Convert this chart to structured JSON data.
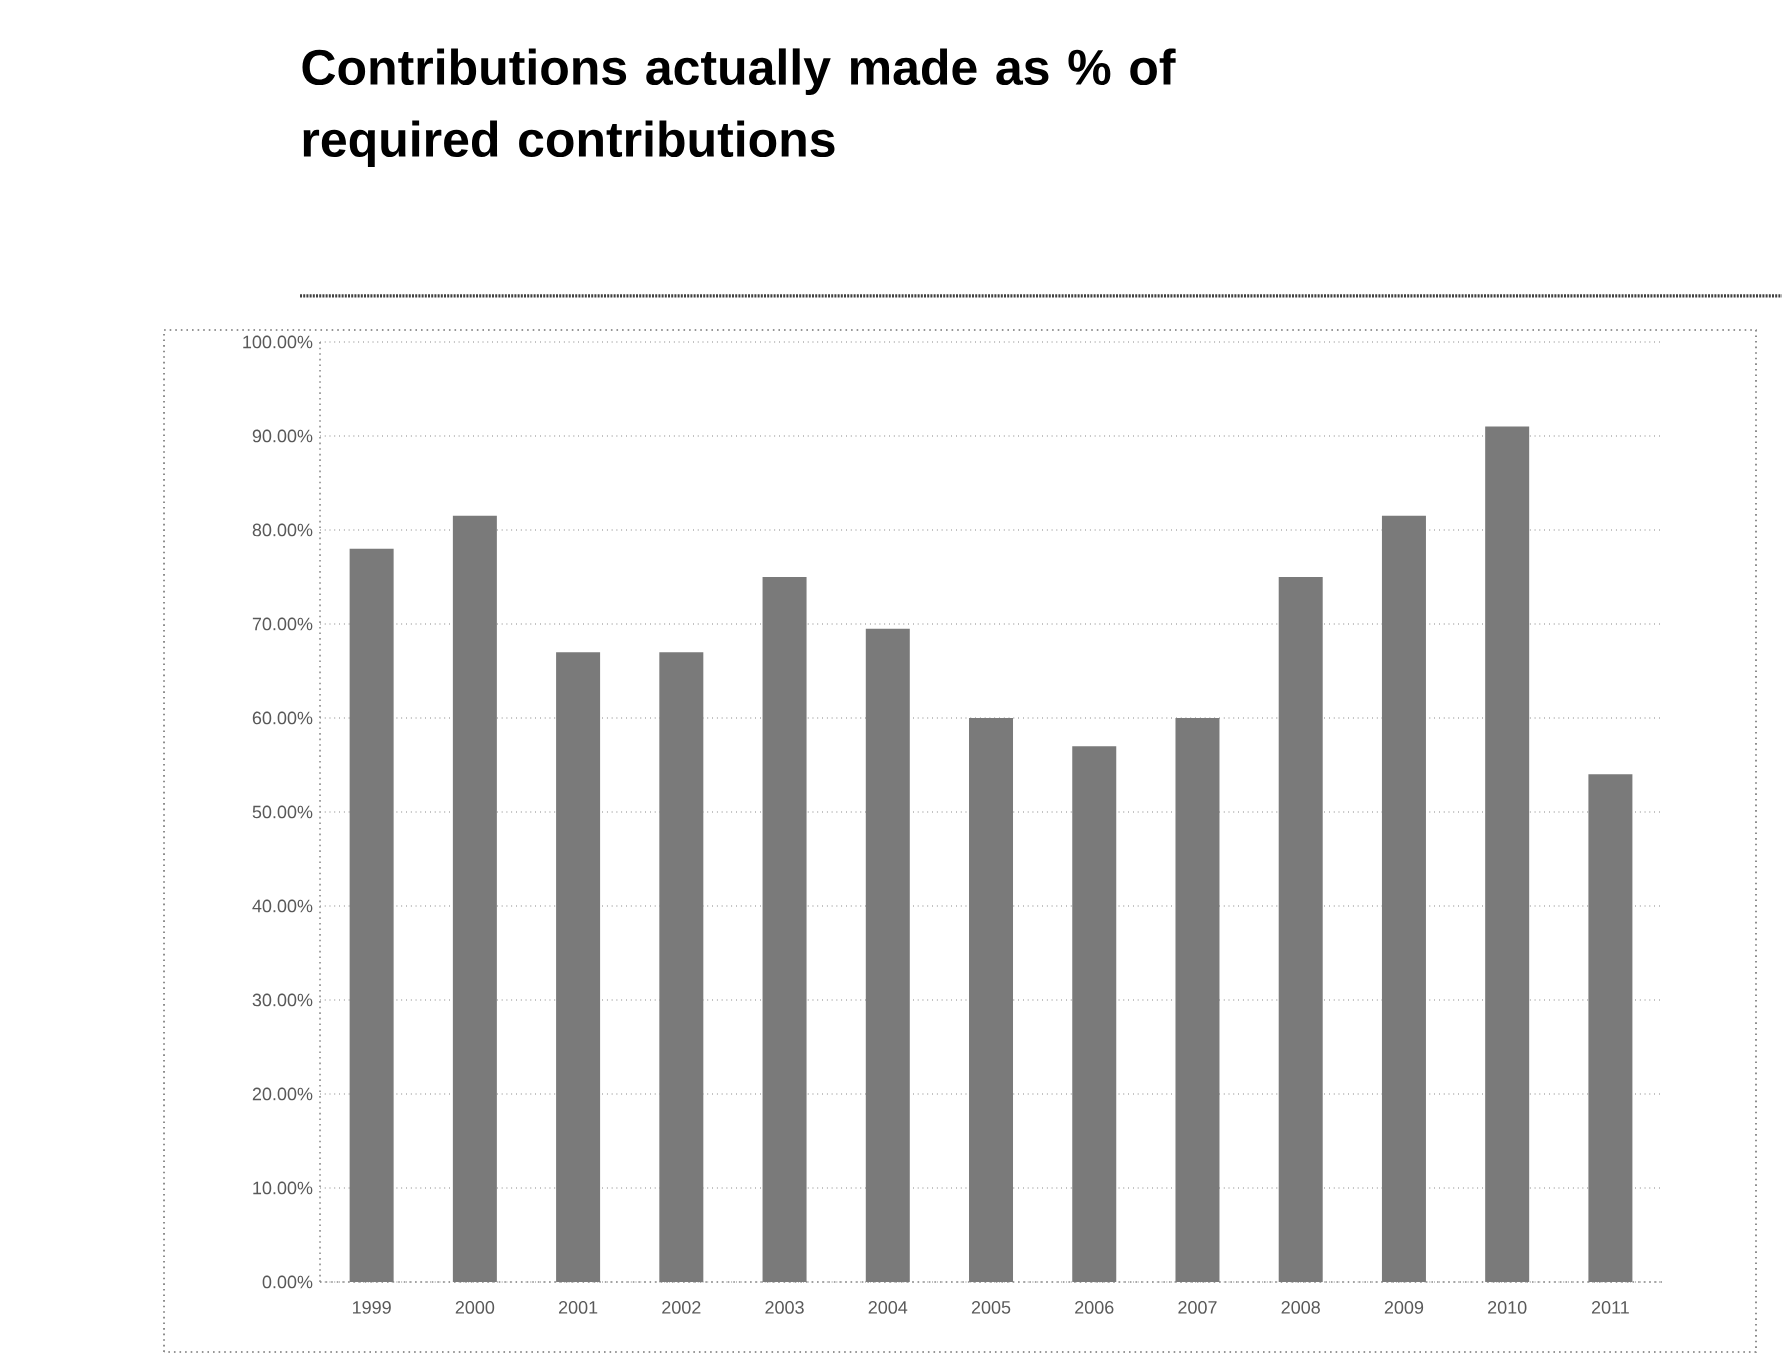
{
  "chart_data": {
    "type": "bar",
    "title": "Contributions actually made as % of required contributions",
    "categories": [
      "1999",
      "2000",
      "2001",
      "2002",
      "2003",
      "2004",
      "2005",
      "2006",
      "2007",
      "2008",
      "2009",
      "2010",
      "2011"
    ],
    "values": [
      78,
      81.5,
      67,
      67,
      75,
      69.5,
      60,
      57,
      60,
      75,
      81.5,
      91,
      54
    ],
    "color": "#7a7a7a",
    "ylim": [
      0,
      100
    ],
    "yticks": [
      {
        "value": 0,
        "label": "0.00%"
      },
      {
        "value": 10,
        "label": "10.00%"
      },
      {
        "value": 20,
        "label": "20.00%"
      },
      {
        "value": 30,
        "label": "30.00%"
      },
      {
        "value": 40,
        "label": "40.00%"
      },
      {
        "value": 50,
        "label": "50.00%"
      },
      {
        "value": 60,
        "label": "60.00%"
      },
      {
        "value": 70,
        "label": "70.00%"
      },
      {
        "value": 80,
        "label": "80.00%"
      },
      {
        "value": 90,
        "label": "90.00%"
      },
      {
        "value": 100,
        "label": "100.00%"
      }
    ],
    "grid": "y"
  }
}
